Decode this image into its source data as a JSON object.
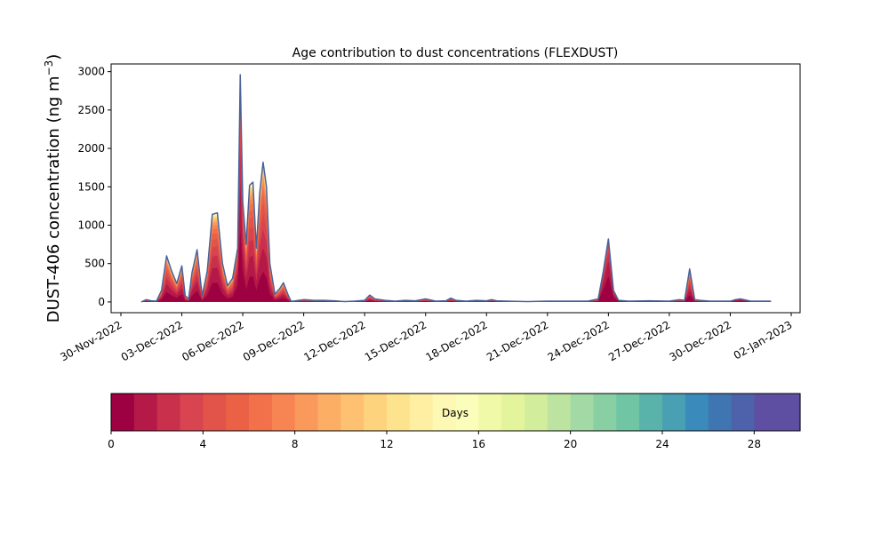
{
  "chart_data": {
    "type": "area",
    "title": "Age contribution to dust concentrations (FLEXDUST)",
    "ylabel_main": "DUST-406 concentration (ng m",
    "ylabel_exp": "−3",
    "ylabel_close": ")",
    "xlabel": "",
    "ylim": [
      -140,
      3100
    ],
    "yticks": [
      0,
      500,
      1000,
      1500,
      2000,
      2500,
      3000
    ],
    "x_range": [
      "2022-11-30",
      "2023-01-02"
    ],
    "xticks": [
      "30-Nov-2022",
      "03-Dec-2022",
      "06-Dec-2022",
      "09-Dec-2022",
      "12-Dec-2022",
      "15-Dec-2022",
      "18-Dec-2022",
      "21-Dec-2022",
      "24-Dec-2022",
      "27-Dec-2022",
      "30-Dec-2022",
      "02-Jan-2023"
    ],
    "xtick_dates": [
      "2022-11-30",
      "2022-12-03",
      "2022-12-06",
      "2022-12-09",
      "2022-12-12",
      "2022-12-15",
      "2022-12-18",
      "2022-12-21",
      "2022-12-24",
      "2022-12-27",
      "2022-12-30",
      "2023-01-02"
    ],
    "total_series": {
      "x": [
        "2022-12-01T00:00",
        "2022-12-01T06:00",
        "2022-12-01T12:00",
        "2022-12-01T18:00",
        "2022-12-02T00:00",
        "2022-12-02T06:00",
        "2022-12-02T12:00",
        "2022-12-02T18:00",
        "2022-12-03T00:00",
        "2022-12-03T04:00",
        "2022-12-03T08:00",
        "2022-12-03T12:00",
        "2022-12-03T18:00",
        "2022-12-04T00:00",
        "2022-12-04T06:00",
        "2022-12-04T12:00",
        "2022-12-04T18:00",
        "2022-12-05T00:00",
        "2022-12-05T06:00",
        "2022-12-05T12:00",
        "2022-12-05T18:00",
        "2022-12-05T21:00",
        "2022-12-06T00:00",
        "2022-12-06T04:00",
        "2022-12-06T08:00",
        "2022-12-06T12:00",
        "2022-12-06T16:00",
        "2022-12-06T20:00",
        "2022-12-07T00:00",
        "2022-12-07T04:00",
        "2022-12-07T08:00",
        "2022-12-07T14:00",
        "2022-12-07T20:00",
        "2022-12-08T00:00",
        "2022-12-08T06:00",
        "2022-12-08T09:00",
        "2022-12-08T12:00",
        "2022-12-08T18:00",
        "2022-12-09T00:00",
        "2022-12-09T12:00",
        "2022-12-10T00:00",
        "2022-12-10T12:00",
        "2022-12-11T00:00",
        "2022-12-11T12:00",
        "2022-12-12T00:00",
        "2022-12-12T06:00",
        "2022-12-12T12:00",
        "2022-12-13T00:00",
        "2022-12-13T12:00",
        "2022-12-14T00:00",
        "2022-12-14T12:00",
        "2022-12-15T00:00",
        "2022-12-15T12:00",
        "2022-12-16T00:00",
        "2022-12-16T06:00",
        "2022-12-16T12:00",
        "2022-12-17T00:00",
        "2022-12-17T12:00",
        "2022-12-18T00:00",
        "2022-12-18T06:00",
        "2022-12-18T12:00",
        "2022-12-19T00:00",
        "2022-12-20T00:00",
        "2022-12-21T00:00",
        "2022-12-22T00:00",
        "2022-12-23T00:00",
        "2022-12-23T12:00",
        "2022-12-23T18:00",
        "2022-12-24T00:00",
        "2022-12-24T06:00",
        "2022-12-24T12:00",
        "2022-12-25T00:00",
        "2022-12-26T00:00",
        "2022-12-27T00:00",
        "2022-12-27T12:00",
        "2022-12-27T18:00",
        "2022-12-28T00:00",
        "2022-12-28T06:00",
        "2022-12-28T12:00",
        "2022-12-29T00:00",
        "2022-12-30T00:00",
        "2022-12-30T06:00",
        "2022-12-30T12:00",
        "2022-12-31T00:00",
        "2023-01-01T00:00"
      ],
      "y": [
        0,
        30,
        15,
        10,
        150,
        600,
        400,
        240,
        470,
        80,
        40,
        380,
        680,
        80,
        400,
        1140,
        1160,
        500,
        210,
        310,
        700,
        2960,
        1300,
        750,
        1520,
        1560,
        700,
        1420,
        1820,
        1500,
        500,
        100,
        180,
        250,
        80,
        10,
        10,
        20,
        30,
        20,
        20,
        15,
        5,
        10,
        20,
        90,
        40,
        20,
        10,
        20,
        15,
        40,
        10,
        15,
        50,
        20,
        10,
        20,
        15,
        30,
        15,
        10,
        5,
        10,
        10,
        10,
        40,
        400,
        820,
        150,
        20,
        10,
        15,
        10,
        30,
        20,
        430,
        30,
        20,
        10,
        10,
        30,
        40,
        10,
        10
      ]
    },
    "colorbar": {
      "label": "Days",
      "range": [
        0,
        30
      ],
      "ticks": [
        0,
        4,
        8,
        12,
        16,
        20,
        24,
        28
      ],
      "colormap": "Spectral",
      "colors": [
        "#9e0142",
        "#b41947",
        "#c9304c",
        "#d84450",
        "#e2534a",
        "#ea6145",
        "#f2704a",
        "#f78453",
        "#f99a5c",
        "#fcae65",
        "#fdc171",
        "#fed37e",
        "#fee38f",
        "#feefa3",
        "#fef8b5",
        "#fbfdba",
        "#f0f9a8",
        "#e3f49c",
        "#d2ed9b",
        "#bce4a0",
        "#a2d9a4",
        "#88cfa4",
        "#6fc5a4",
        "#59b3aa",
        "#4aa0b3",
        "#3a8bbb",
        "#3f76b2",
        "#4e62ab",
        "#5e4fa2",
        "#5e4fa2"
      ]
    },
    "line_color": "#4a6298"
  }
}
